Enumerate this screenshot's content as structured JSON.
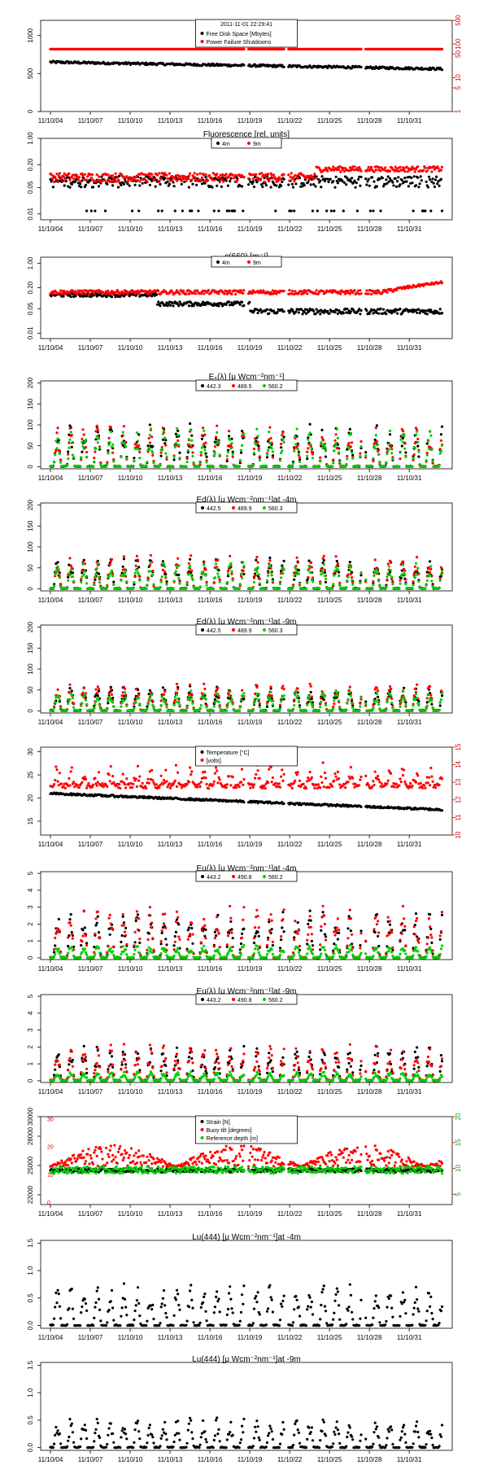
{
  "xticks": [
    "11/10/04",
    "11/10/07",
    "11/10/10",
    "11/10/13",
    "11/10/16",
    "11/10/19",
    "11/10/22",
    "11/10/25",
    "11/10/28",
    "11/10/31"
  ],
  "header_date": "2011-11-01 22:29:41",
  "chart_data": [
    {
      "id": "disk",
      "type": "scatter",
      "ytick_left": [
        "0",
        "500",
        "1000"
      ],
      "ytick_right": [
        "1",
        "5",
        "10",
        "50",
        "100",
        "500"
      ],
      "ylim": [
        0,
        1200
      ],
      "y2_log": true,
      "y2lim": [
        1,
        500
      ],
      "legend": [
        {
          "label": "Free Disk Space [Mbytes]",
          "color": "#000000"
        },
        {
          "label": "Power Failure Shutdowns",
          "color": "#ff0000"
        }
      ],
      "series": [
        {
          "color": "#000000",
          "base": 650,
          "amp": 40,
          "noise": 30
        },
        {
          "color": "#ff0000",
          "level": 70,
          "axis": "right"
        }
      ]
    },
    {
      "id": "fluor",
      "type": "scatter",
      "title": "Fluorescence  [rel. units]",
      "ytick_left": [
        "0.01",
        "0.05",
        "0.20",
        "1.00"
      ],
      "ylog": true,
      "ylim": [
        0.007,
        1.0
      ],
      "legend": [
        {
          "label": "4m",
          "color": "#000000"
        },
        {
          "label": "9m",
          "color": "#ff0000"
        }
      ],
      "series": [
        {
          "color": "#000000",
          "pattern": "fluor4"
        },
        {
          "color": "#ff0000",
          "pattern": "fluor9"
        }
      ]
    },
    {
      "id": "c660",
      "type": "scatter",
      "title": "c(660)  [m⁻¹]",
      "ytick_left": [
        "0.01",
        "0.05",
        "0.20",
        "1.00"
      ],
      "ylog": true,
      "ylim": [
        0.007,
        1.5
      ],
      "legend": [
        {
          "label": "4m",
          "color": "#000000"
        },
        {
          "label": "9m",
          "color": "#ff0000"
        }
      ],
      "series": [
        {
          "color": "#000000",
          "pattern": "c4"
        },
        {
          "color": "#ff0000",
          "pattern": "c9"
        }
      ]
    },
    {
      "id": "es",
      "type": "scatter",
      "title": "Eₛ(λ)  [μ Wcm⁻²nm⁻¹]",
      "ytick_left": [
        "0",
        "50",
        "100",
        "150",
        "200"
      ],
      "ylim": [
        -5,
        205
      ],
      "legend": [
        {
          "label": "442.3",
          "color": "#000000"
        },
        {
          "label": "489.5",
          "color": "#ff0000"
        },
        {
          "label": "560.2",
          "color": "#00cc00"
        }
      ],
      "series": [
        {
          "color": "#000000",
          "peak": 95
        },
        {
          "color": "#ff0000",
          "peak": 90
        },
        {
          "color": "#00cc00",
          "peak": 85
        }
      ]
    },
    {
      "id": "ed4",
      "type": "scatter",
      "title": "Ed(λ)  [μ Wcm⁻²nm⁻¹]at -4m",
      "ytick_left": [
        "0",
        "50",
        "100",
        "150",
        "200"
      ],
      "ylim": [
        -5,
        205
      ],
      "legend": [
        {
          "label": "442.5",
          "color": "#000000"
        },
        {
          "label": "489.9",
          "color": "#ff0000"
        },
        {
          "label": "560.3",
          "color": "#00cc00"
        }
      ],
      "series": [
        {
          "color": "#000000",
          "peak": 70
        },
        {
          "color": "#ff0000",
          "peak": 75
        },
        {
          "color": "#00cc00",
          "peak": 60
        }
      ]
    },
    {
      "id": "ed9",
      "type": "scatter",
      "title": "Ed(λ)  [μ Wcm⁻²nm⁻¹]at -9m",
      "ytick_left": [
        "0",
        "50",
        "100",
        "150",
        "200"
      ],
      "ylim": [
        -5,
        205
      ],
      "legend": [
        {
          "label": "442.5",
          "color": "#000000"
        },
        {
          "label": "489.9",
          "color": "#ff0000"
        },
        {
          "label": "560.3",
          "color": "#00cc00"
        }
      ],
      "series": [
        {
          "color": "#000000",
          "peak": 55
        },
        {
          "color": "#ff0000",
          "peak": 60
        },
        {
          "color": "#00cc00",
          "peak": 45
        }
      ]
    },
    {
      "id": "temp",
      "type": "scatter",
      "ytick_left": [
        "15",
        "20",
        "25",
        "30"
      ],
      "ylim": [
        12,
        31
      ],
      "ytick_right": [
        "10",
        "11",
        "12",
        "13",
        "14",
        "15"
      ],
      "y2lim": [
        10,
        15
      ],
      "legend": [
        {
          "label": "Temperature [°C]",
          "color": "#000000"
        },
        {
          "label": "[volts]",
          "color": "#ff0000"
        }
      ],
      "series": [
        {
          "color": "#000000",
          "pattern": "temp"
        },
        {
          "color": "#ff0000",
          "pattern": "volts",
          "axis": "right"
        }
      ]
    },
    {
      "id": "eu4",
      "type": "scatter",
      "title": "Eu(λ)  [μ Wcm⁻²nm⁻¹]at -4m",
      "ytick_left": [
        "0",
        "1",
        "2",
        "3",
        "4",
        "5"
      ],
      "ylim": [
        -0.1,
        5.1
      ],
      "legend": [
        {
          "label": "443.2",
          "color": "#000000"
        },
        {
          "label": "490.8",
          "color": "#ff0000"
        },
        {
          "label": "560.2",
          "color": "#00cc00"
        }
      ],
      "series": [
        {
          "color": "#000000",
          "peak": 2.6
        },
        {
          "color": "#ff0000",
          "peak": 2.8
        },
        {
          "color": "#00cc00",
          "peak": 0.7
        }
      ]
    },
    {
      "id": "eu9",
      "type": "scatter",
      "title": "Eu(λ)  [μ Wcm⁻²nm⁻¹]at -9m",
      "ytick_left": [
        "0",
        "1",
        "2",
        "3",
        "4",
        "5"
      ],
      "ylim": [
        -0.1,
        5.1
      ],
      "legend": [
        {
          "label": "443.2",
          "color": "#000000"
        },
        {
          "label": "490.8",
          "color": "#ff0000"
        },
        {
          "label": "560.2",
          "color": "#00cc00"
        }
      ],
      "series": [
        {
          "color": "#000000",
          "peak": 1.9
        },
        {
          "color": "#ff0000",
          "peak": 2.0
        },
        {
          "color": "#00cc00",
          "peak": 0.5
        }
      ]
    },
    {
      "id": "strain",
      "type": "scatter",
      "ytick_left": [
        "22000",
        "25000",
        "28000",
        "30000"
      ],
      "ylim": [
        21000,
        30000
      ],
      "ytick_right": [
        "5",
        "10",
        "15",
        "20"
      ],
      "y2lim": [
        3,
        20
      ],
      "ytick_inner": [
        "0",
        "10",
        "20",
        "30"
      ],
      "legend": [
        {
          "label": "Strain [N]",
          "color": "#000000"
        },
        {
          "label": "Buoy tilt [degrees]",
          "color": "#ff0000"
        },
        {
          "label": "Reference depth [m]",
          "color": "#00cc00"
        }
      ],
      "series": [
        {
          "color": "#000000",
          "pattern": "strain"
        },
        {
          "color": "#ff0000",
          "pattern": "tilt"
        },
        {
          "color": "#00cc00",
          "pattern": "depth"
        }
      ]
    },
    {
      "id": "lu4",
      "type": "scatter",
      "title": "Lu(444)  [μ Wcm⁻²nm⁻¹]at -4m",
      "ytick_left": [
        "0.0",
        "0.5",
        "1.0",
        "1.5"
      ],
      "ylim": [
        -0.05,
        1.55
      ],
      "series": [
        {
          "color": "#000000",
          "peak": 0.7
        }
      ]
    },
    {
      "id": "lu9",
      "type": "scatter",
      "title": "Lu(444)  [μ Wcm⁻²nm⁻¹]at -9m",
      "ytick_left": [
        "0.0",
        "0.5",
        "1.0",
        "1.5"
      ],
      "ylim": [
        -0.05,
        1.55
      ],
      "series": [
        {
          "color": "#000000",
          "peak": 0.5
        }
      ]
    }
  ]
}
